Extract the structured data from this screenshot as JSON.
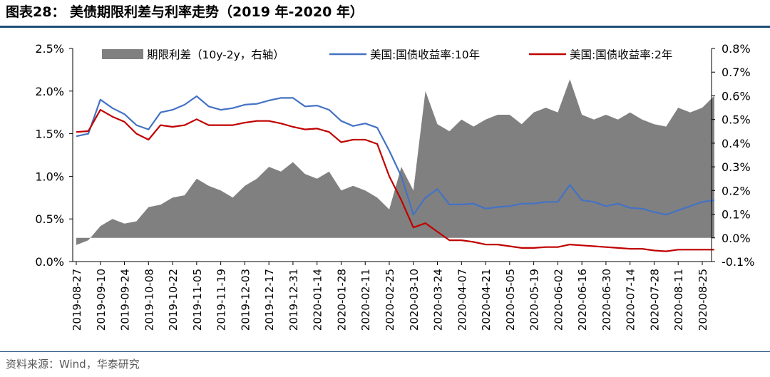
{
  "title": "图表28：  美债期限利差与利率走势（2019 年-2020 年）",
  "source": "资料来源：Wind，华泰研究",
  "chart_data": {
    "type": "line",
    "title": "",
    "xlabel": "",
    "ylabel": "",
    "y_left": {
      "range": [
        0.0,
        2.5
      ],
      "ticks": [
        "0.0%",
        "0.5%",
        "1.0%",
        "1.5%",
        "2.0%",
        "2.5%"
      ]
    },
    "y_right": {
      "range": [
        -0.1,
        0.8
      ],
      "ticks": [
        "-0.1%",
        "0.0%",
        "0.1%",
        "0.2%",
        "0.3%",
        "0.4%",
        "0.5%",
        "0.6%",
        "0.7%",
        "0.8%"
      ]
    },
    "legend_position": "top",
    "x_ticks": [
      "2019-08-27",
      "2019-09-10",
      "2019-09-24",
      "2019-10-08",
      "2019-10-22",
      "2019-11-05",
      "2019-11-19",
      "2019-12-03",
      "2019-12-17",
      "2019-12-31",
      "2020-01-14",
      "2020-01-28",
      "2020-02-11",
      "2020-02-25",
      "2020-03-10",
      "2020-03-24",
      "2020-04-07",
      "2020-04-21",
      "2020-05-05",
      "2020-05-19",
      "2020-06-02",
      "2020-06-16",
      "2020-06-30",
      "2020-07-14",
      "2020-07-28",
      "2020-08-11",
      "2020-08-25"
    ],
    "x": [
      "2019-08-27",
      "2019-09-03",
      "2019-09-10",
      "2019-09-17",
      "2019-09-24",
      "2019-10-01",
      "2019-10-08",
      "2019-10-15",
      "2019-10-22",
      "2019-10-29",
      "2019-11-05",
      "2019-11-12",
      "2019-11-19",
      "2019-11-26",
      "2019-12-03",
      "2019-12-10",
      "2019-12-17",
      "2019-12-24",
      "2019-12-31",
      "2020-01-07",
      "2020-01-14",
      "2020-01-21",
      "2020-01-28",
      "2020-02-04",
      "2020-02-11",
      "2020-02-18",
      "2020-02-25",
      "2020-03-03",
      "2020-03-10",
      "2020-03-17",
      "2020-03-24",
      "2020-03-31",
      "2020-04-07",
      "2020-04-14",
      "2020-04-21",
      "2020-04-28",
      "2020-05-05",
      "2020-05-12",
      "2020-05-19",
      "2020-05-26",
      "2020-06-02",
      "2020-06-09",
      "2020-06-16",
      "2020-06-23",
      "2020-06-30",
      "2020-07-07",
      "2020-07-14",
      "2020-07-21",
      "2020-07-28",
      "2020-08-04",
      "2020-08-11",
      "2020-08-18",
      "2020-08-25",
      "2020-09-01"
    ],
    "series": [
      {
        "name": "期限利差（10y-2y，右轴）",
        "type": "area",
        "axis": "right",
        "color": "#808080",
        "values": [
          -0.03,
          -0.01,
          0.05,
          0.08,
          0.06,
          0.07,
          0.13,
          0.14,
          0.17,
          0.18,
          0.25,
          0.22,
          0.2,
          0.17,
          0.22,
          0.25,
          0.3,
          0.28,
          0.32,
          0.27,
          0.25,
          0.28,
          0.2,
          0.22,
          0.2,
          0.17,
          0.12,
          0.3,
          0.2,
          0.62,
          0.48,
          0.45,
          0.5,
          0.47,
          0.5,
          0.52,
          0.52,
          0.48,
          0.53,
          0.55,
          0.53,
          0.67,
          0.52,
          0.5,
          0.52,
          0.5,
          0.53,
          0.5,
          0.48,
          0.47,
          0.55,
          0.53,
          0.55,
          0.6
        ]
      },
      {
        "name": "美国:国债收益率:10年",
        "type": "line",
        "axis": "left",
        "color": "#4472c4",
        "values": [
          1.47,
          1.5,
          1.9,
          1.8,
          1.73,
          1.6,
          1.55,
          1.75,
          1.78,
          1.84,
          1.94,
          1.82,
          1.78,
          1.8,
          1.84,
          1.85,
          1.89,
          1.92,
          1.92,
          1.82,
          1.83,
          1.78,
          1.65,
          1.59,
          1.62,
          1.57,
          1.3,
          1.0,
          0.55,
          0.75,
          0.85,
          0.67,
          0.67,
          0.68,
          0.62,
          0.64,
          0.65,
          0.68,
          0.68,
          0.7,
          0.7,
          0.9,
          0.72,
          0.7,
          0.65,
          0.68,
          0.63,
          0.62,
          0.58,
          0.55,
          0.6,
          0.65,
          0.7,
          0.72
        ]
      },
      {
        "name": "美国:国债收益率:2年",
        "type": "line",
        "axis": "left",
        "color": "#c00000",
        "values": [
          1.52,
          1.53,
          1.78,
          1.7,
          1.64,
          1.5,
          1.43,
          1.6,
          1.58,
          1.6,
          1.67,
          1.6,
          1.6,
          1.6,
          1.63,
          1.65,
          1.65,
          1.62,
          1.58,
          1.55,
          1.56,
          1.52,
          1.4,
          1.43,
          1.43,
          1.38,
          1.0,
          0.72,
          0.4,
          0.45,
          0.35,
          0.25,
          0.25,
          0.23,
          0.2,
          0.2,
          0.18,
          0.16,
          0.16,
          0.17,
          0.17,
          0.2,
          0.19,
          0.18,
          0.17,
          0.16,
          0.15,
          0.15,
          0.13,
          0.12,
          0.14,
          0.14,
          0.14,
          0.14
        ]
      }
    ]
  }
}
